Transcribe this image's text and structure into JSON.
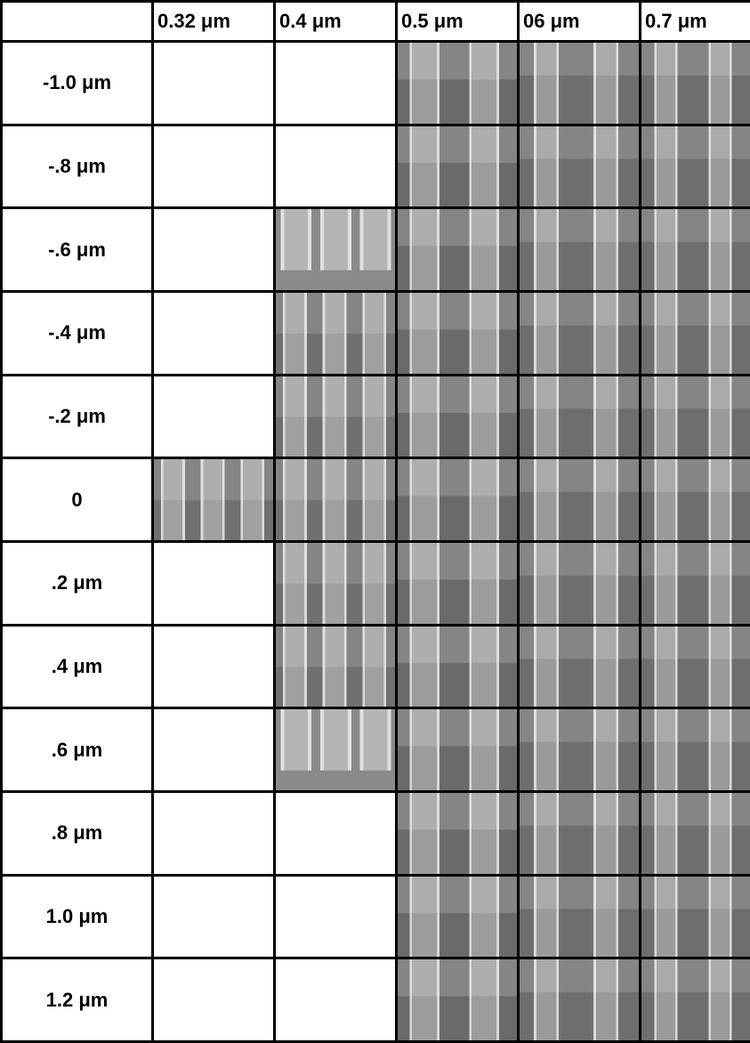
{
  "table": {
    "columns": [
      "0.32 μm",
      "0.4 μm",
      "0.5 μm",
      "06 μm",
      "0.7 μm"
    ],
    "rows": [
      "-1.0 μm",
      "-.8 μm",
      "-.6 μm",
      "-.4 μm",
      "-.2 μm",
      "0",
      ".2 μm",
      ".4 μm",
      ".6 μm",
      ".8 μm",
      "1.0 μm",
      "1.2 μm"
    ]
  }
}
